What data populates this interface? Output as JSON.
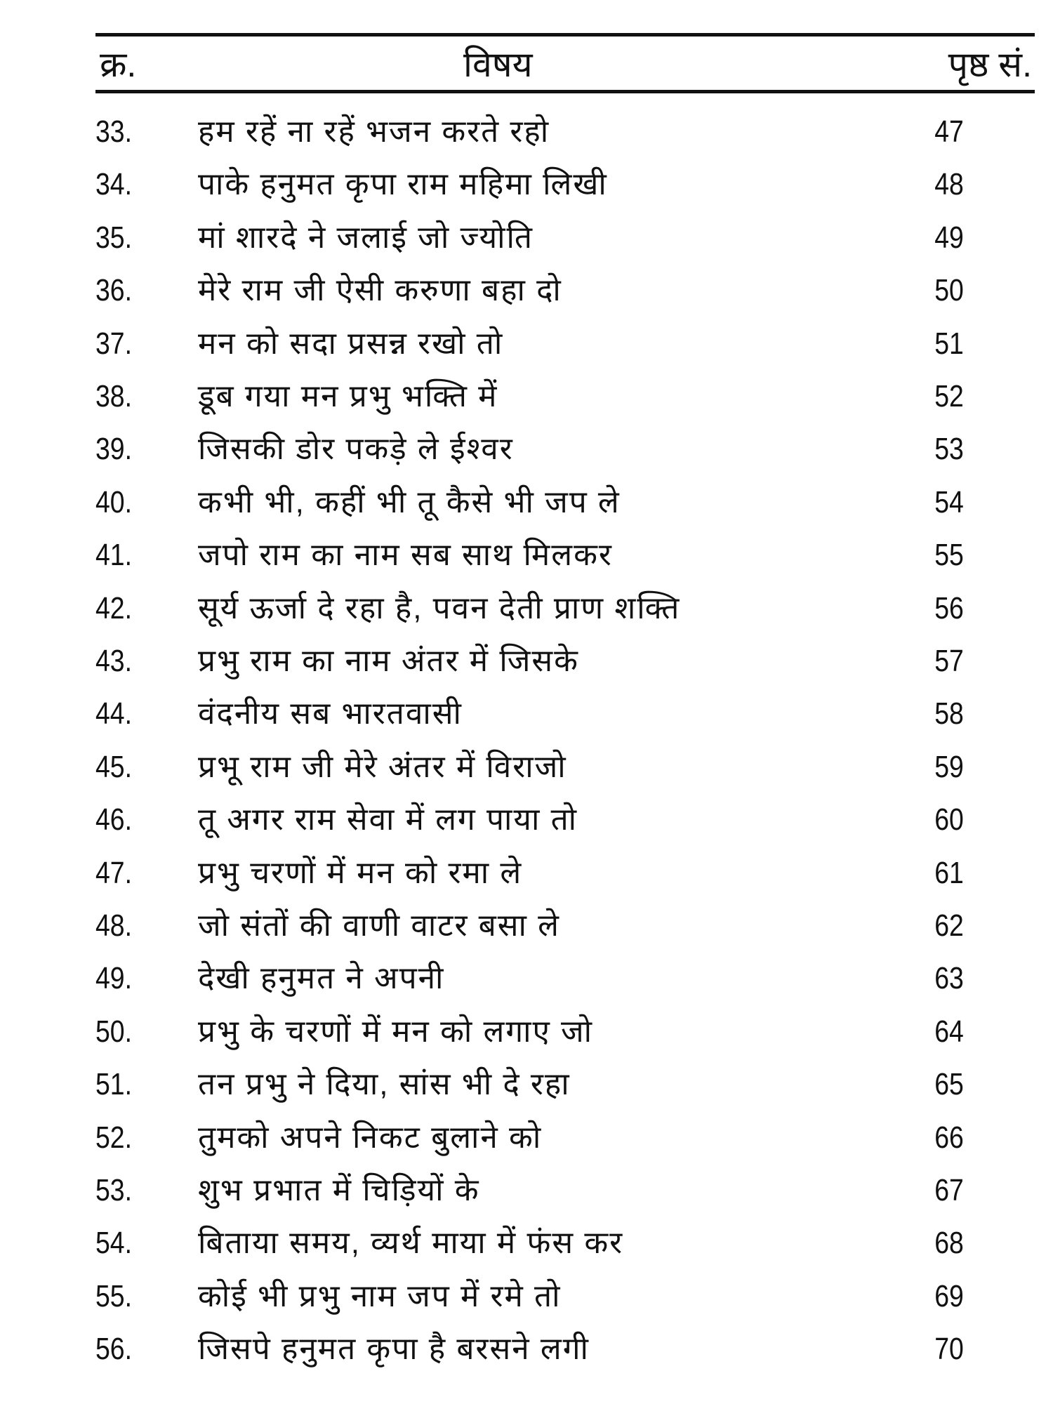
{
  "header": {
    "number": "क्र.",
    "title": "विषय",
    "page": "पृष्ठ सं."
  },
  "entries": [
    {
      "number": "33.",
      "title": "हम रहें ना रहें भजन करते रहो",
      "page": "47"
    },
    {
      "number": "34.",
      "title": "पाके हनुमत कृपा राम महिमा लिखी",
      "page": "48"
    },
    {
      "number": "35.",
      "title": "मां शारदे ने जलाई जो ज्योति",
      "page": "49"
    },
    {
      "number": "36.",
      "title": "मेरे राम जी ऐसी करुणा बहा दो",
      "page": "50"
    },
    {
      "number": "37.",
      "title": "मन को सदा प्रसन्न रखो तो",
      "page": "51"
    },
    {
      "number": "38.",
      "title": "डूब गया मन प्रभु भक्ति में",
      "page": "52"
    },
    {
      "number": "39.",
      "title": "जिसकी डोर पकड़े ले ईश्वर",
      "page": "53"
    },
    {
      "number": "40.",
      "title": "कभी भी, कहीं भी तू कैसे भी जप ले",
      "page": "54"
    },
    {
      "number": "41.",
      "title": "जपो राम का नाम सब साथ मिलकर",
      "page": "55"
    },
    {
      "number": "42.",
      "title": "सूर्य ऊर्जा दे रहा है, पवन देती प्राण शक्ति",
      "page": "56"
    },
    {
      "number": "43.",
      "title": "प्रभु राम का नाम अंतर में जिसके",
      "page": "57"
    },
    {
      "number": "44.",
      "title": "वंदनीय सब भारतवासी",
      "page": "58"
    },
    {
      "number": "45.",
      "title": "प्रभू राम जी मेरे अंतर में विराजो",
      "page": "59"
    },
    {
      "number": "46.",
      "title": "तू अगर राम सेवा में लग पाया तो",
      "page": "60"
    },
    {
      "number": "47.",
      "title": "प्रभु चरणों में मन को रमा ले",
      "page": "61"
    },
    {
      "number": "48.",
      "title": "जो संतों की वाणी वाटर बसा ले",
      "page": "62"
    },
    {
      "number": "49.",
      "title": "देखी हनुमत ने अपनी",
      "page": "63"
    },
    {
      "number": "50.",
      "title": "प्रभु के चरणों में मन को लगाए जो",
      "page": "64"
    },
    {
      "number": "51.",
      "title": "तन प्रभु ने दिया, सांस भी दे रहा",
      "page": "65"
    },
    {
      "number": "52.",
      "title": "तुमको अपने निकट बुलाने को",
      "page": "66"
    },
    {
      "number": "53.",
      "title": "शुभ प्रभात में चिड़ियों के",
      "page": "67"
    },
    {
      "number": "54.",
      "title": "बिताया समय, व्यर्थ माया में फंस कर",
      "page": "68"
    },
    {
      "number": "55.",
      "title": "कोई भी प्रभु नाम जप में रमे तो",
      "page": "69"
    },
    {
      "number": "56.",
      "title": "जिसपे हनुमत कृपा है बरसने लगी",
      "page": "70"
    }
  ]
}
